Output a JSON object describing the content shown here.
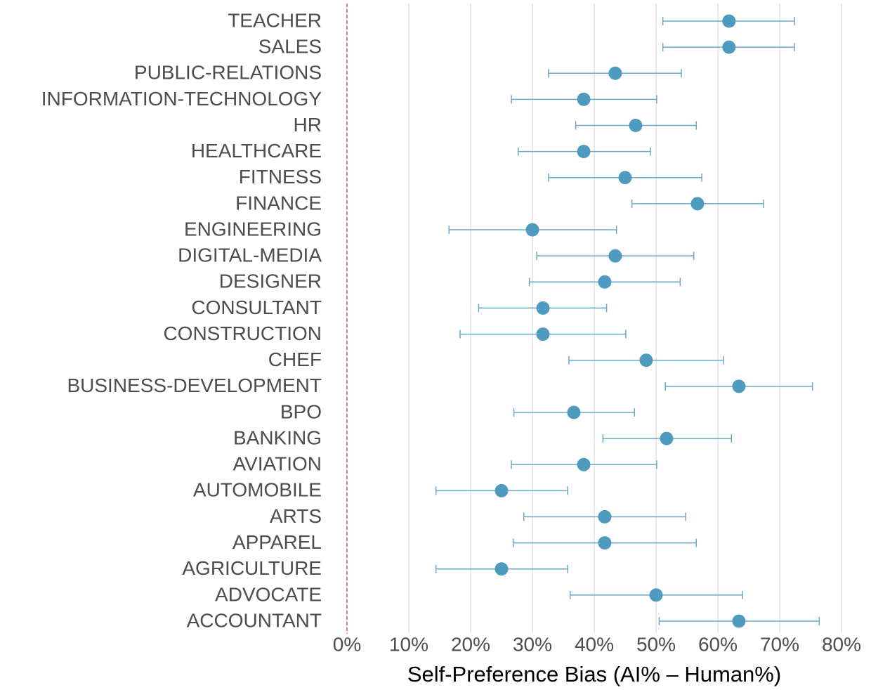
{
  "chart_data": {
    "type": "dot_errorbar",
    "x_label": "Self-Preference Bias (AI% – Human%)",
    "categories": [
      "TEACHER",
      "SALES",
      "PUBLIC-RELATIONS",
      "INFORMATION-TECHNOLOGY",
      "HR",
      "HEALTHCARE",
      "FITNESS",
      "FINANCE",
      "ENGINEERING",
      "DIGITAL-MEDIA",
      "DESIGNER",
      "CONSULTANT",
      "CONSTRUCTION",
      "CHEF",
      "BUSINESS-DEVELOPMENT",
      "BPO",
      "BANKING",
      "AVIATION",
      "AUTOMOBILE",
      "ARTS",
      "APPAREL",
      "AGRICULTURE",
      "ADVOCATE",
      "ACCOUNTANT"
    ],
    "values": [
      61.8,
      61.8,
      43.4,
      38.3,
      46.7,
      38.3,
      45.0,
      56.7,
      30.0,
      43.4,
      41.7,
      31.7,
      31.7,
      48.4,
      63.4,
      36.7,
      51.7,
      38.3,
      25.0,
      41.7,
      41.7,
      25.0,
      50.0,
      63.4
    ],
    "lower": [
      51.1,
      51.1,
      32.6,
      26.6,
      37.0,
      27.7,
      32.6,
      46.1,
      16.5,
      30.7,
      29.5,
      21.3,
      18.3,
      35.9,
      51.5,
      27.0,
      41.4,
      26.6,
      14.4,
      28.6,
      26.9,
      14.4,
      36.1,
      50.5
    ],
    "upper": [
      72.4,
      72.4,
      54.1,
      50.1,
      56.5,
      49.1,
      57.4,
      67.4,
      43.6,
      56.1,
      53.9,
      42.0,
      45.1,
      60.9,
      75.3,
      46.5,
      62.2,
      50.1,
      35.7,
      54.8,
      56.5,
      35.7,
      64.0,
      76.4
    ],
    "color": "#4f9bbf",
    "error_color": "#6aa8c8",
    "xlim": [
      0,
      80
    ],
    "xticks": [
      {
        "value": 0,
        "label": "0%"
      },
      {
        "value": 10,
        "label": "10%"
      },
      {
        "value": 20,
        "label": "20%"
      },
      {
        "value": 30,
        "label": "30%"
      },
      {
        "value": 40,
        "label": "40%"
      },
      {
        "value": 50,
        "label": "50%"
      },
      {
        "value": 60,
        "label": "60%"
      },
      {
        "value": 70,
        "label": "70%"
      },
      {
        "value": 80,
        "label": "80%"
      }
    ],
    "grid": true,
    "reference_line": {
      "value": 0,
      "color": "#e06060"
    }
  }
}
